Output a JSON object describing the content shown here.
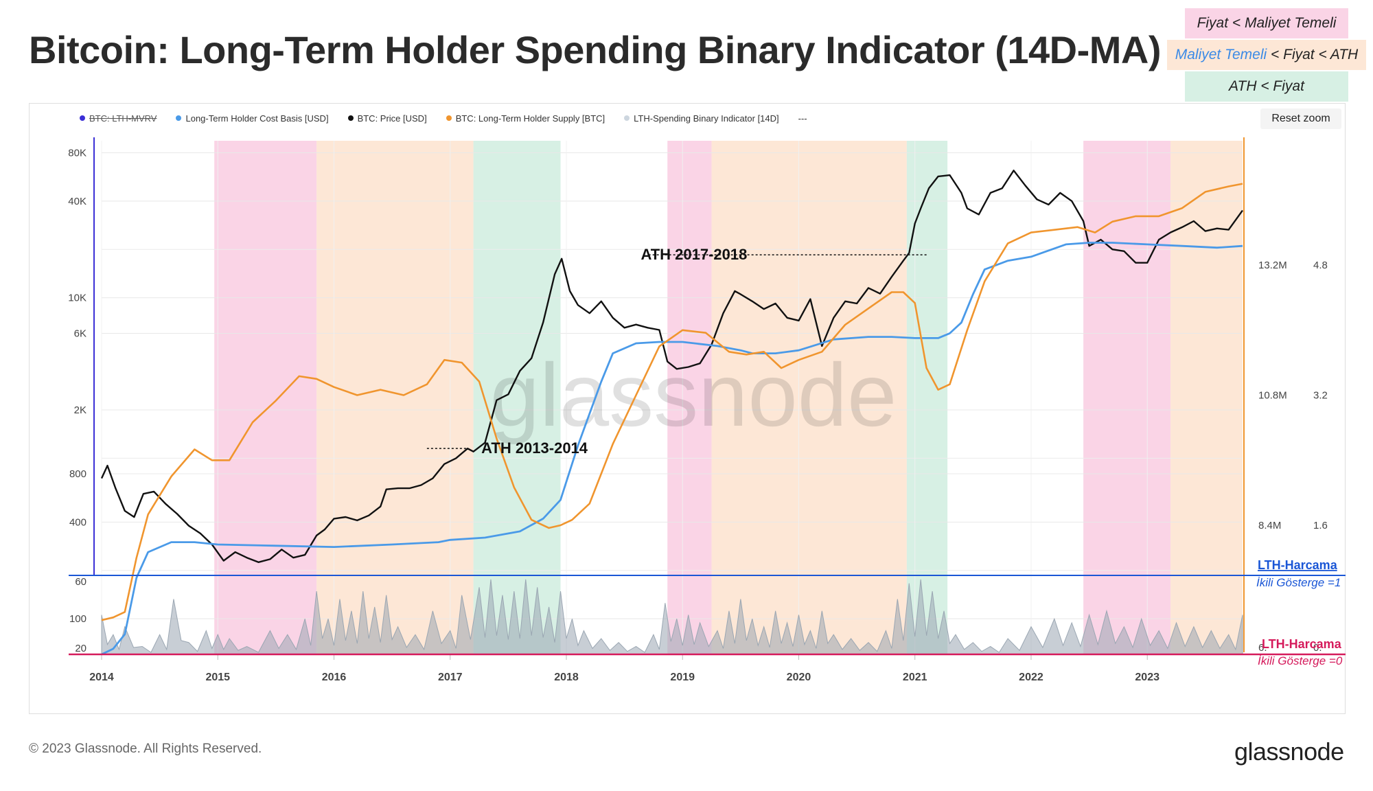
{
  "title": "Bitcoin: Long-Term Holder Spending Binary Indicator (14D-MA)",
  "zone_legend": {
    "fiyat_maliyet": {
      "text": "Fiyat < Maliyet Temeli",
      "color": "#fad4e6"
    },
    "maliyet_ath": {
      "maliyet": "Maliyet Temeli",
      "rest": " < Fiyat < ATH",
      "color": "#fde7d6"
    },
    "ath_fiyat": {
      "text": "ATH < Fiyat",
      "color": "#d7f0e4"
    }
  },
  "legend": [
    {
      "label": "BTC: LTH-MVRV",
      "color": "#3b2fd6",
      "hidden": true
    },
    {
      "label": "Long-Term Holder Cost Basis [USD]",
      "color": "#4a9ae8",
      "hidden": false
    },
    {
      "label": "BTC: Price [USD]",
      "color": "#111111",
      "hidden": false
    },
    {
      "label": "BTC: Long-Term Holder Supply [BTC]",
      "color": "#f0952e",
      "hidden": false
    },
    {
      "label": "LTH-Spending Binary Indicator [14D]",
      "color": "#cdd6df",
      "hidden": false
    },
    {
      "label": "---",
      "color": "#999999",
      "hidden": false
    }
  ],
  "reset_zoom": "Reset zoom",
  "watermark": "glassnode",
  "footer": {
    "copyright": "© 2023 Glassnode. All Rights Reserved.",
    "brand": "glassnode"
  },
  "chart_data": {
    "type": "line",
    "x_range": [
      2014.0,
      2023.82
    ],
    "x_ticks": [
      "2014",
      "2015",
      "2016",
      "2017",
      "2018",
      "2019",
      "2020",
      "2021",
      "2022",
      "2023"
    ],
    "price_axis_log": true,
    "price_ticks": [
      "80K",
      "40K",
      "10K",
      "6K",
      "2K",
      "800",
      "400",
      "100"
    ],
    "price_tick_values": [
      80000,
      40000,
      10000,
      6000,
      2000,
      800,
      400,
      100
    ],
    "indicator_ticks": [
      "60",
      "20"
    ],
    "supply_ticks": [
      "13.2M",
      "10.8M",
      "8.4M"
    ],
    "supply_tick_values": [
      13.2,
      10.8,
      8.4
    ],
    "supply_ticks_partial": "6.",
    "mvrv_ticks": [
      "4.8",
      "3.2",
      "1.6"
    ],
    "mvrv_ticks_partial": "0.",
    "regimes": [
      {
        "start": 2014.0,
        "end": 2014.97,
        "zone": "none"
      },
      {
        "start": 2014.97,
        "end": 2015.85,
        "zone": "fiyat_maliyet"
      },
      {
        "start": 2015.85,
        "end": 2017.2,
        "zone": "maliyet_ath"
      },
      {
        "start": 2017.2,
        "end": 2017.95,
        "zone": "ath_fiyat"
      },
      {
        "start": 2017.95,
        "end": 2018.87,
        "zone": "none"
      },
      {
        "start": 2018.87,
        "end": 2019.25,
        "zone": "fiyat_maliyet"
      },
      {
        "start": 2019.25,
        "end": 2020.93,
        "zone": "maliyet_ath"
      },
      {
        "start": 2020.93,
        "end": 2021.28,
        "zone": "ath_fiyat"
      },
      {
        "start": 2021.28,
        "end": 2022.45,
        "zone": "none"
      },
      {
        "start": 2022.45,
        "end": 2023.2,
        "zone": "fiyat_maliyet"
      },
      {
        "start": 2023.2,
        "end": 2023.82,
        "zone": "maliyet_ath"
      }
    ],
    "series": [
      {
        "name": "BTC: Price [USD]",
        "color": "#111111",
        "x": [
          2014.0,
          2014.05,
          2014.12,
          2014.2,
          2014.28,
          2014.36,
          2014.45,
          2014.55,
          2014.65,
          2014.75,
          2014.85,
          2014.95,
          2015.05,
          2015.15,
          2015.25,
          2015.35,
          2015.45,
          2015.55,
          2015.65,
          2015.75,
          2015.85,
          2015.92,
          2016.0,
          2016.1,
          2016.2,
          2016.3,
          2016.4,
          2016.45,
          2016.55,
          2016.65,
          2016.75,
          2016.85,
          2016.95,
          2017.05,
          2017.15,
          2017.2,
          2017.3,
          2017.4,
          2017.5,
          2017.6,
          2017.7,
          2017.8,
          2017.9,
          2017.96,
          2018.03,
          2018.1,
          2018.2,
          2018.3,
          2018.4,
          2018.5,
          2018.6,
          2018.7,
          2018.8,
          2018.87,
          2018.95,
          2019.05,
          2019.15,
          2019.25,
          2019.35,
          2019.45,
          2019.5,
          2019.6,
          2019.7,
          2019.8,
          2019.9,
          2020.0,
          2020.1,
          2020.2,
          2020.3,
          2020.4,
          2020.5,
          2020.6,
          2020.7,
          2020.8,
          2020.9,
          2020.95,
          2021.0,
          2021.05,
          2021.12,
          2021.2,
          2021.3,
          2021.4,
          2021.45,
          2021.55,
          2021.65,
          2021.75,
          2021.85,
          2021.95,
          2022.05,
          2022.15,
          2022.25,
          2022.35,
          2022.45,
          2022.5,
          2022.6,
          2022.7,
          2022.8,
          2022.9,
          2023.0,
          2023.1,
          2023.2,
          2023.3,
          2023.4,
          2023.5,
          2023.6,
          2023.7,
          2023.82
        ],
        "values": [
          750,
          900,
          650,
          470,
          430,
          600,
          620,
          520,
          450,
          380,
          340,
          290,
          230,
          260,
          240,
          225,
          235,
          270,
          240,
          250,
          330,
          360,
          420,
          430,
          410,
          440,
          500,
          640,
          650,
          650,
          680,
          750,
          920,
          1000,
          1150,
          1100,
          1250,
          2300,
          2500,
          3500,
          4200,
          7000,
          14000,
          17500,
          11000,
          9000,
          8000,
          9500,
          7500,
          6500,
          6800,
          6500,
          6300,
          4000,
          3600,
          3700,
          3900,
          5100,
          8000,
          11000,
          10500,
          9500,
          8500,
          9200,
          7500,
          7200,
          9800,
          5000,
          7500,
          9500,
          9200,
          11500,
          10600,
          13500,
          17000,
          19000,
          29000,
          36000,
          48000,
          57000,
          58000,
          45000,
          36000,
          33000,
          45000,
          48000,
          62000,
          50000,
          41000,
          38000,
          45000,
          40000,
          30000,
          21000,
          23000,
          20000,
          19500,
          16500,
          16500,
          23000,
          25500,
          27500,
          30000,
          26000,
          27000,
          26500,
          35000
        ]
      },
      {
        "name": "Long-Term Holder Cost Basis [USD]",
        "color": "#4a9ae8",
        "x": [
          2014.0,
          2014.1,
          2014.2,
          2014.3,
          2014.4,
          2014.6,
          2014.8,
          2015.0,
          2015.5,
          2016.0,
          2016.5,
          2016.9,
          2017.0,
          2017.3,
          2017.6,
          2017.8,
          2017.95,
          2018.1,
          2018.3,
          2018.4,
          2018.6,
          2018.8,
          2019.0,
          2019.3,
          2019.5,
          2019.6,
          2019.8,
          2020.0,
          2020.3,
          2020.6,
          2020.8,
          2021.0,
          2021.2,
          2021.3,
          2021.4,
          2021.5,
          2021.6,
          2021.8,
          2022.0,
          2022.3,
          2022.5,
          2022.7,
          2023.0,
          2023.3,
          2023.6,
          2023.82
        ],
        "values": [
          60,
          65,
          80,
          180,
          260,
          300,
          300,
          290,
          285,
          280,
          290,
          300,
          310,
          320,
          350,
          420,
          550,
          1200,
          3000,
          4500,
          5200,
          5300,
          5300,
          5000,
          4700,
          4500,
          4500,
          4700,
          5500,
          5700,
          5700,
          5600,
          5600,
          6000,
          7000,
          10500,
          15000,
          17000,
          18000,
          21500,
          22000,
          22000,
          21500,
          21000,
          20500,
          21000
        ]
      },
      {
        "name": "BTC: Long-Term Holder Supply [BTC]",
        "color": "#f0952e",
        "x": [
          2014.0,
          2014.1,
          2014.2,
          2014.3,
          2014.4,
          2014.6,
          2014.8,
          2014.95,
          2015.1,
          2015.3,
          2015.5,
          2015.7,
          2015.85,
          2016.0,
          2016.2,
          2016.4,
          2016.6,
          2016.8,
          2016.95,
          2017.1,
          2017.25,
          2017.4,
          2017.55,
          2017.7,
          2017.85,
          2017.95,
          2018.05,
          2018.2,
          2018.4,
          2018.6,
          2018.8,
          2019.0,
          2019.2,
          2019.4,
          2019.55,
          2019.7,
          2019.85,
          2020.0,
          2020.2,
          2020.4,
          2020.6,
          2020.8,
          2020.9,
          2021.0,
          2021.1,
          2021.2,
          2021.3,
          2021.45,
          2021.6,
          2021.8,
          2022.0,
          2022.2,
          2022.4,
          2022.55,
          2022.7,
          2022.9,
          2023.1,
          2023.3,
          2023.5,
          2023.7,
          2023.82
        ],
        "values": [
          6.65,
          6.7,
          6.8,
          7.8,
          8.6,
          9.3,
          9.8,
          9.6,
          9.6,
          10.3,
          10.7,
          11.15,
          11.1,
          10.95,
          10.8,
          10.9,
          10.8,
          11.0,
          11.45,
          11.4,
          11.05,
          10.0,
          9.1,
          8.5,
          8.35,
          8.4,
          8.5,
          8.8,
          9.9,
          10.8,
          11.7,
          12.0,
          11.95,
          11.6,
          11.55,
          11.6,
          11.3,
          11.45,
          11.6,
          12.1,
          12.4,
          12.7,
          12.7,
          12.5,
          11.3,
          10.9,
          11.0,
          12.0,
          12.9,
          13.6,
          13.8,
          13.85,
          13.9,
          13.8,
          14.0,
          14.1,
          14.1,
          14.25,
          14.55,
          14.65,
          14.7
        ]
      }
    ],
    "indicator": {
      "name": "LTH-Spending Binary Indicator [14D]",
      "color": "#cdd6df",
      "x": [
        2014.0,
        2014.1,
        2014.2,
        2014.35,
        2014.5,
        2014.62,
        2014.75,
        2014.9,
        2015.0,
        2015.1,
        2015.25,
        2015.45,
        2015.6,
        2015.75,
        2015.85,
        2015.95,
        2016.05,
        2016.15,
        2016.25,
        2016.35,
        2016.45,
        2016.55,
        2016.7,
        2016.85,
        2017.0,
        2017.1,
        2017.25,
        2017.35,
        2017.45,
        2017.55,
        2017.65,
        2017.75,
        2017.85,
        2017.95,
        2018.05,
        2018.15,
        2018.3,
        2018.45,
        2018.6,
        2018.75,
        2018.85,
        2018.95,
        2019.05,
        2019.15,
        2019.3,
        2019.4,
        2019.5,
        2019.6,
        2019.7,
        2019.8,
        2019.9,
        2020.0,
        2020.1,
        2020.2,
        2020.3,
        2020.45,
        2020.6,
        2020.75,
        2020.85,
        2020.95,
        2021.05,
        2021.15,
        2021.25,
        2021.35,
        2021.5,
        2021.65,
        2021.8,
        2022.0,
        2022.2,
        2022.35,
        2022.5,
        2022.65,
        2022.8,
        2022.95,
        2023.1,
        2023.25,
        2023.4,
        2023.55,
        2023.7,
        2023.82
      ],
      "values": [
        0.5,
        0.25,
        0.35,
        0.1,
        0.25,
        0.7,
        0.15,
        0.3,
        0.25,
        0.2,
        0.1,
        0.3,
        0.25,
        0.45,
        0.8,
        0.45,
        0.7,
        0.55,
        0.8,
        0.6,
        0.75,
        0.35,
        0.25,
        0.55,
        0.3,
        0.75,
        0.85,
        0.95,
        0.75,
        0.8,
        0.95,
        0.85,
        0.6,
        0.8,
        0.45,
        0.3,
        0.2,
        0.15,
        0.1,
        0.25,
        0.65,
        0.45,
        0.5,
        0.4,
        0.3,
        0.55,
        0.7,
        0.45,
        0.35,
        0.55,
        0.4,
        0.5,
        0.3,
        0.55,
        0.25,
        0.2,
        0.15,
        0.3,
        0.7,
        0.9,
        0.95,
        0.8,
        0.55,
        0.25,
        0.15,
        0.1,
        0.2,
        0.35,
        0.45,
        0.4,
        0.5,
        0.55,
        0.35,
        0.45,
        0.3,
        0.4,
        0.35,
        0.3,
        0.25,
        0.5
      ]
    },
    "annotations": [
      {
        "text": "ATH 2013-2014",
        "x": 2017.15,
        "y": 1150,
        "line_from": 2016.8
      },
      {
        "text": "ATH 2017-2018",
        "x": 2018.7,
        "y": 18500,
        "line_from": 2021.1
      }
    ],
    "threshold_labels": [
      {
        "line1": "LTH-Harcama",
        "line2": "İkili Gösterge =1",
        "color": "#1a56d6"
      },
      {
        "line1": "LTH-Harcama",
        "line2": "İkili Gösterge =0",
        "color": "#d51a5b"
      }
    ]
  }
}
